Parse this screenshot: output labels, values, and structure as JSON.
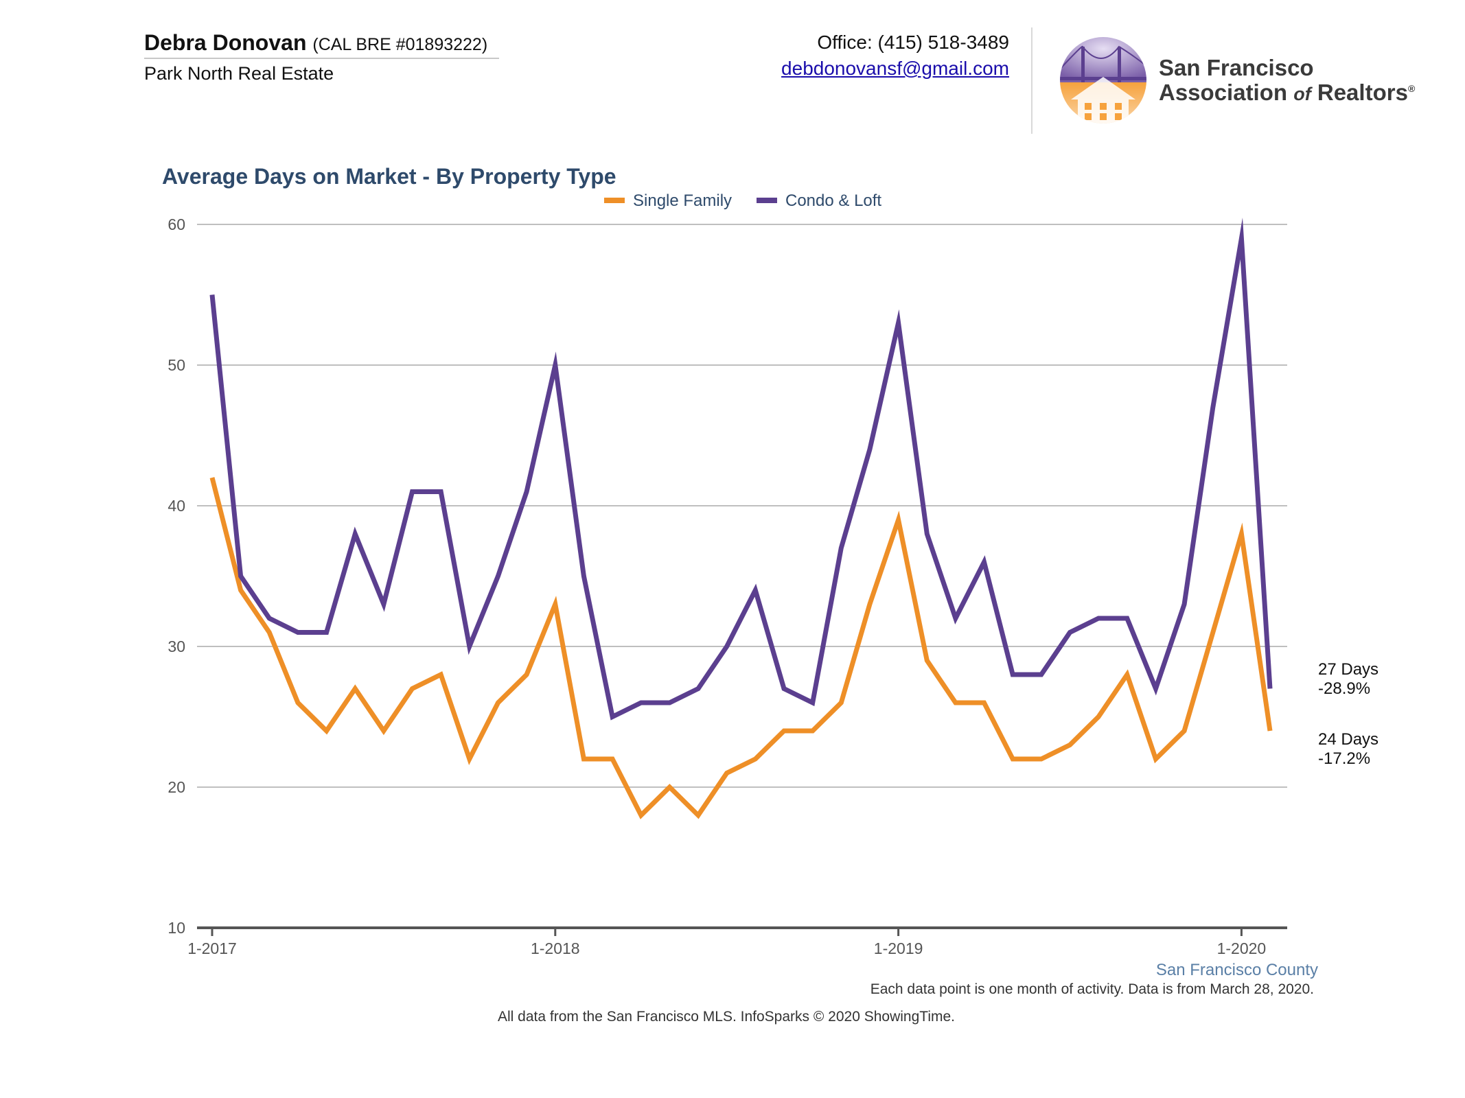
{
  "header": {
    "agent_name": "Debra Donovan",
    "agent_license": "(CAL BRE #01893222)",
    "company": "Park North Real Estate",
    "office_phone": "Office: (415) 518-3489",
    "email": "debdonovansf@gmail.com",
    "logo": {
      "line1": "San Francisco",
      "line2_prefix": "Association",
      "line2_of": "of",
      "line2_suffix": "Realtors",
      "registered_mark": "®",
      "icon": "golden-gate-bridge-house-logo-icon",
      "colors": {
        "purple": "#7a5ea8",
        "orange": "#f0922b"
      }
    }
  },
  "chart_data": {
    "type": "line",
    "title": "Average Days on Market - By Property Type",
    "xlabel": "",
    "ylabel": "",
    "x": [
      "1-2017",
      "2-2017",
      "3-2017",
      "4-2017",
      "5-2017",
      "6-2017",
      "7-2017",
      "8-2017",
      "9-2017",
      "10-2017",
      "11-2017",
      "12-2017",
      "1-2018",
      "2-2018",
      "3-2018",
      "4-2018",
      "5-2018",
      "6-2018",
      "7-2018",
      "8-2018",
      "9-2018",
      "10-2018",
      "11-2018",
      "12-2018",
      "1-2019",
      "2-2019",
      "3-2019",
      "4-2019",
      "5-2019",
      "6-2019",
      "7-2019",
      "8-2019",
      "9-2019",
      "10-2019",
      "11-2019",
      "12-2019",
      "1-2020",
      "2-2020"
    ],
    "x_tick_labels": [
      "1-2017",
      "1-2018",
      "1-2019",
      "1-2020"
    ],
    "ylim": [
      10,
      60
    ],
    "y_ticks": [
      10,
      20,
      30,
      40,
      50,
      60
    ],
    "grid": true,
    "legend_position": "top-center",
    "series": [
      {
        "name": "Single Family",
        "color": "#ee8f27",
        "values": [
          42,
          34,
          31,
          26,
          24,
          27,
          24,
          27,
          28,
          22,
          26,
          28,
          33,
          22,
          22,
          18,
          20,
          18,
          21,
          22,
          24,
          24,
          26,
          33,
          39,
          29,
          26,
          26,
          22,
          22,
          23,
          25,
          28,
          22,
          24,
          31,
          38,
          24
        ]
      },
      {
        "name": "Condo & Loft",
        "color": "#5b3f8f",
        "values": [
          55,
          35,
          32,
          31,
          31,
          38,
          33,
          41,
          41,
          30,
          35,
          41,
          50,
          35,
          25,
          26,
          26,
          27,
          30,
          34,
          27,
          26,
          37,
          44,
          53,
          38,
          32,
          36,
          28,
          28,
          31,
          32,
          32,
          27,
          33,
          47,
          59,
          27
        ]
      }
    ],
    "end_annotations": [
      {
        "series": "Condo & Loft",
        "line1": "27 Days",
        "line2": "-28.9%"
      },
      {
        "series": "Single Family",
        "line1": "24 Days",
        "line2": "-17.2%"
      }
    ],
    "region_label": "San Francisco County",
    "colors": {
      "title": "#2e4a6b",
      "region": "#5a7fa6",
      "grid": "#bfbfbf",
      "axis": "#555555",
      "tick_text": "#555555"
    }
  },
  "footer": {
    "note": "Each data point is one month of activity. Data is from March 28, 2020.",
    "source": "All data from the San Francisco MLS. InfoSparks © 2020 ShowingTime."
  }
}
